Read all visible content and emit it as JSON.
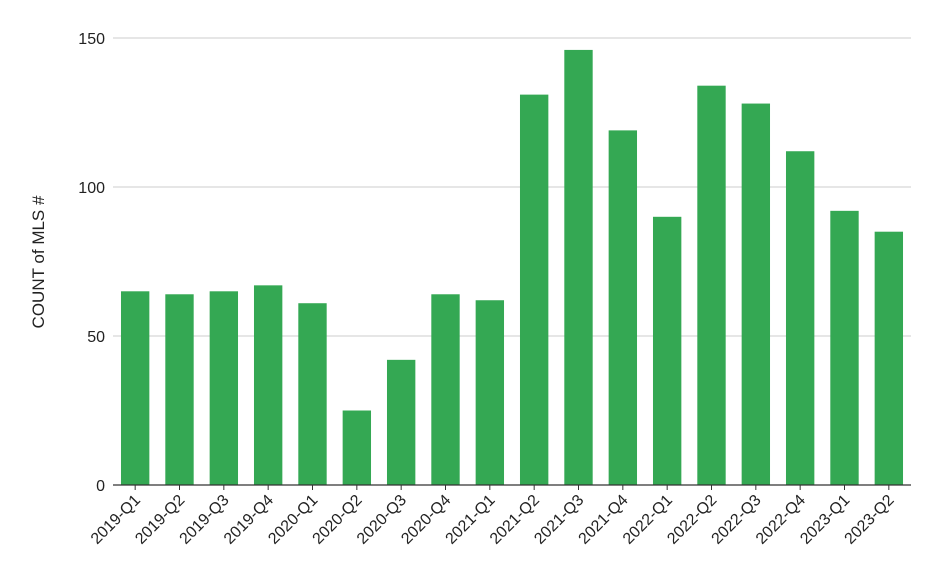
{
  "chart_data": {
    "type": "bar",
    "title": "",
    "xlabel": "",
    "ylabel": "COUNT of MLS #",
    "categories": [
      "2019-Q1",
      "2019-Q2",
      "2019-Q3",
      "2019-Q4",
      "2020-Q1",
      "2020-Q2",
      "2020-Q3",
      "2020-Q4",
      "2021-Q1",
      "2021-Q2",
      "2021-Q3",
      "2021-Q4",
      "2022-Q1",
      "2022-Q2",
      "2022-Q3",
      "2022-Q4",
      "2023-Q1",
      "2023-Q2"
    ],
    "values": [
      65,
      64,
      65,
      67,
      61,
      25,
      42,
      64,
      62,
      131,
      146,
      119,
      90,
      134,
      128,
      112,
      92,
      85
    ],
    "ylim": [
      0,
      150
    ],
    "yticks": [
      0,
      50,
      100,
      150
    ],
    "grid": true,
    "bar_color": "#34a853",
    "grid_color": "#cccccc",
    "axis_color": "#333333"
  }
}
